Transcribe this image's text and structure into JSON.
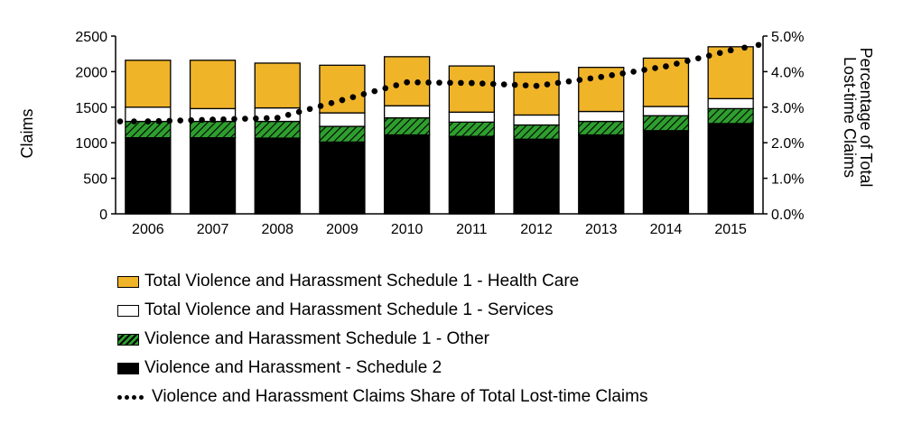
{
  "chart_data": {
    "type": "bar",
    "stacked": true,
    "categories": [
      "2006",
      "2007",
      "2008",
      "2009",
      "2010",
      "2011",
      "2012",
      "2013",
      "2014",
      "2015"
    ],
    "series": [
      {
        "name": "Violence and Harassment - Schedule 2",
        "color": "#000000",
        "pattern": "solid",
        "values": [
          1070,
          1070,
          1065,
          1010,
          1110,
          1090,
          1050,
          1110,
          1170,
          1270
        ]
      },
      {
        "name": "Violence and Harassment Schedule 1 - Other",
        "color": "#2e9e2e",
        "pattern": "hatched",
        "values": [
          230,
          230,
          235,
          220,
          240,
          200,
          200,
          190,
          210,
          210
        ]
      },
      {
        "name": "Total Violence and Harassment Schedule 1 - Services",
        "color": "#ffffff",
        "pattern": "solid",
        "values": [
          200,
          180,
          190,
          190,
          170,
          140,
          140,
          140,
          130,
          140
        ]
      },
      {
        "name": "Total Violence and Harassment Schedule 1 - Health Care",
        "color": "#f0b429",
        "pattern": "solid",
        "values": [
          660,
          680,
          630,
          670,
          690,
          650,
          600,
          620,
          680,
          730
        ]
      }
    ],
    "line_series": {
      "name": "Violence and Harassment Claims Share of Total Lost-time Claims",
      "axis": "right",
      "values": [
        2.6,
        2.65,
        2.7,
        3.2,
        3.7,
        3.68,
        3.6,
        3.85,
        4.15,
        4.6
      ]
    },
    "ylabel": "Claims",
    "y2label_lines": [
      "Percentage of Total",
      "Lost-time Claims"
    ],
    "ylim": [
      0,
      2500
    ],
    "yticks": [
      "0",
      "500",
      "1000",
      "1500",
      "2000",
      "2500"
    ],
    "y2lim": [
      0,
      5
    ],
    "y2ticks": [
      "0.0%",
      "1.0%",
      "2.0%",
      "3.0%",
      "4.0%",
      "5.0%"
    ],
    "legend_order": [
      "Total Violence and Harassment Schedule 1 - Health Care",
      "Total Violence and Harassment Schedule 1 - Services",
      "Violence and Harassment Schedule 1 - Other",
      "Violence and Harassment - Schedule 2",
      "Violence and Harassment Claims Share of Total Lost-time Claims"
    ],
    "legend_placement": "bottom",
    "grid": false
  }
}
